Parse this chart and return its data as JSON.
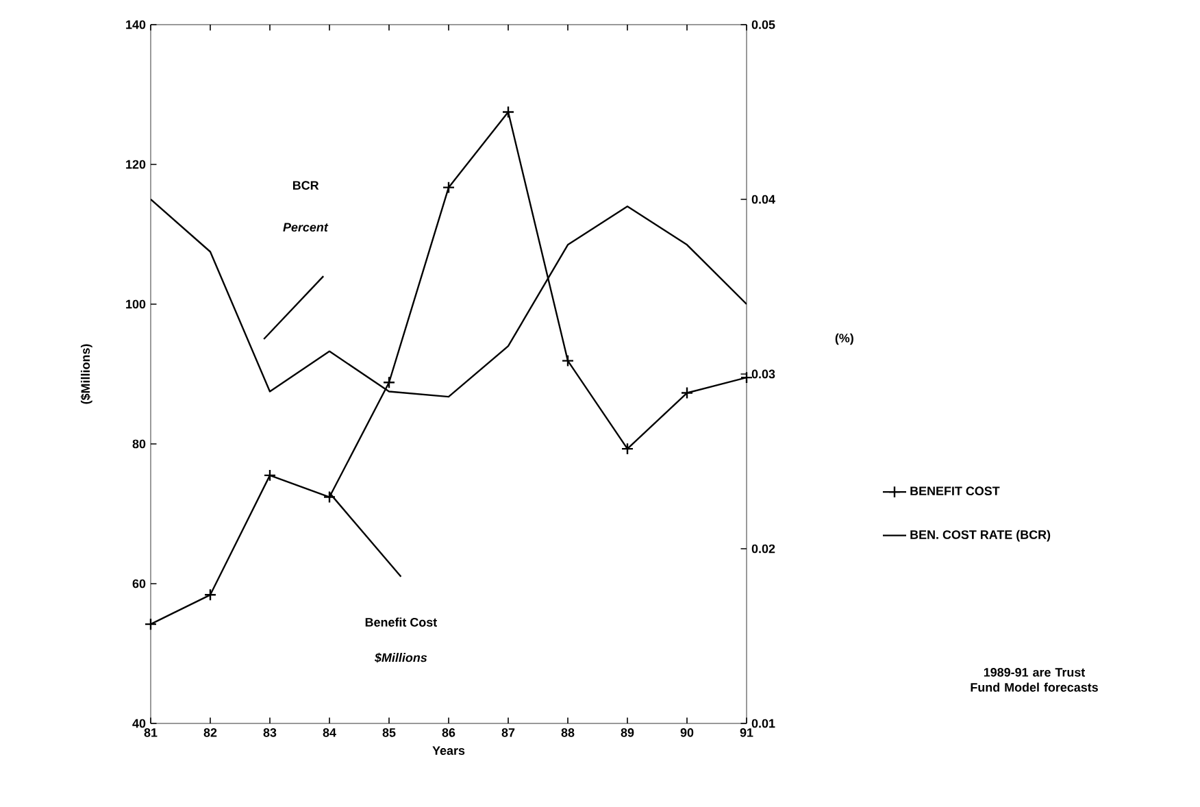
{
  "chart_data": {
    "type": "line",
    "xlabel": "Years",
    "ylabel": "($Millions)",
    "y2label": "(%)",
    "categories": [
      "81",
      "82",
      "83",
      "84",
      "85",
      "86",
      "87",
      "88",
      "89",
      "90",
      "91"
    ],
    "series": [
      {
        "name": "BENEFIT COST",
        "color": "#000000",
        "marker": "cross",
        "values": [
          54.2,
          58.4,
          75.5,
          72.4,
          88.8,
          116.7,
          127.5,
          91.9,
          79.3,
          87.3,
          89.5
        ]
      },
      {
        "name": "BEN. COST RATE (BCR)",
        "color": "#000000",
        "marker": "none",
        "axis": "y2",
        "values": [
          0.04,
          0.037,
          0.029,
          0.0313,
          0.029,
          0.0287,
          0.0316,
          0.0374,
          0.0396,
          0.0374,
          0.034
        ]
      }
    ],
    "ylim": [
      40,
      140
    ],
    "yticks": [
      40,
      60,
      80,
      100,
      120,
      140
    ],
    "y2lim": [
      0.01,
      0.05
    ],
    "y2ticks": [
      0.01,
      0.02,
      0.03,
      0.04,
      0.05
    ],
    "legend": "right",
    "grid": false,
    "annotations": [
      "BCR",
      "*Percent*",
      "Benefit Cost",
      "*$Millions*",
      "1989-91 are Trust Fund Model forecasts"
    ]
  }
}
